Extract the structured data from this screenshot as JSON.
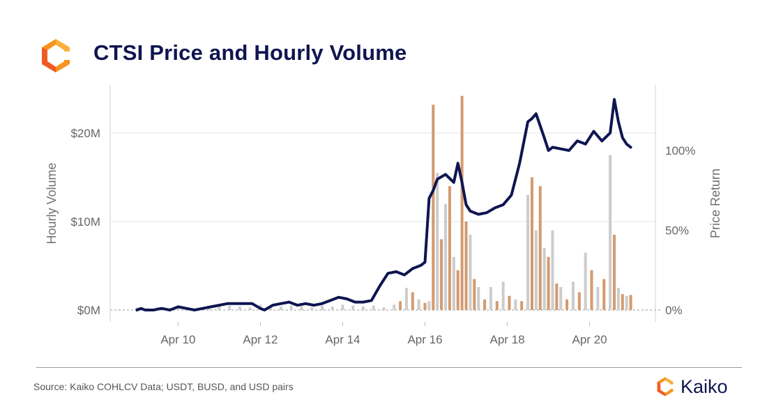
{
  "header": {
    "title": "CTSI Price and Hourly Volume"
  },
  "footer": {
    "source": "Source: Kaiko COHLCV Data; USDT, BUSD, and USD pairs",
    "brand": "Kaiko"
  },
  "colors": {
    "price_line": "#0f1550",
    "volume_bar_a": "#d49a6f",
    "volume_bar_b": "#cccccc",
    "grid": "#e6e6e6",
    "logo_orange": "#f7931e"
  },
  "chart_data": {
    "type": "bar+line",
    "title": "CTSI Price and Hourly Volume",
    "y_left_label": "Hourly Volume",
    "y_right_label": "Price Return",
    "y_left_ticks": [
      "$0M",
      "$10M",
      "$20M"
    ],
    "y_right_ticks": [
      "0%",
      "50%",
      "100%"
    ],
    "x_ticks": [
      "Apr 10",
      "Apr 12",
      "Apr 14",
      "Apr 16",
      "Apr 18",
      "Apr 20"
    ],
    "y_left_range_musd": [
      0,
      24
    ],
    "y_right_range_pct": [
      0,
      140
    ],
    "grid": true,
    "x_domain_days": [
      9.0,
      21.2
    ],
    "price_return_series": {
      "name": "Price Return",
      "x": [
        9.0,
        9.1,
        9.2,
        9.4,
        9.6,
        9.8,
        10.0,
        10.2,
        10.4,
        10.6,
        10.8,
        11.0,
        11.2,
        11.4,
        11.6,
        11.8,
        12.0,
        12.1,
        12.3,
        12.5,
        12.7,
        12.9,
        13.1,
        13.3,
        13.5,
        13.7,
        13.9,
        14.1,
        14.3,
        14.5,
        14.7,
        14.9,
        15.1,
        15.3,
        15.5,
        15.7,
        15.9,
        16.0,
        16.1,
        16.2,
        16.3,
        16.5,
        16.7,
        16.8,
        16.9,
        17.0,
        17.1,
        17.3,
        17.5,
        17.7,
        17.9,
        18.1,
        18.3,
        18.5,
        18.6,
        18.7,
        18.9,
        19.0,
        19.1,
        19.3,
        19.5,
        19.7,
        19.9,
        20.1,
        20.3,
        20.5,
        20.6,
        20.7,
        20.8,
        20.9,
        21.0
      ],
      "y": [
        0,
        1,
        0,
        0,
        1,
        0,
        2,
        1,
        0,
        1,
        2,
        3,
        4,
        4,
        4,
        4,
        1,
        0,
        3,
        4,
        5,
        3,
        4,
        3,
        4,
        6,
        8,
        7,
        5,
        5,
        6,
        15,
        23,
        24,
        22,
        26,
        28,
        30,
        70,
        75,
        82,
        85,
        80,
        92,
        80,
        66,
        62,
        60,
        61,
        64,
        66,
        72,
        92,
        118,
        120,
        123,
        108,
        100,
        102,
        101,
        100,
        106,
        104,
        112,
        106,
        111,
        132,
        118,
        108,
        104,
        102
      ]
    },
    "volume_series": {
      "name": "Hourly Volume",
      "unit": "USD millions",
      "x": [
        9.0,
        9.25,
        9.5,
        9.75,
        10.0,
        10.25,
        10.5,
        10.75,
        11.0,
        11.25,
        11.5,
        11.75,
        12.0,
        12.25,
        12.5,
        12.75,
        13.0,
        13.25,
        13.5,
        13.75,
        14.0,
        14.25,
        14.5,
        14.75,
        15.0,
        15.25,
        15.4,
        15.55,
        15.7,
        15.85,
        16.0,
        16.1,
        16.2,
        16.3,
        16.4,
        16.5,
        16.6,
        16.7,
        16.8,
        16.9,
        17.0,
        17.1,
        17.2,
        17.3,
        17.45,
        17.6,
        17.75,
        17.9,
        18.05,
        18.2,
        18.35,
        18.5,
        18.6,
        18.7,
        18.8,
        18.9,
        19.0,
        19.1,
        19.2,
        19.3,
        19.45,
        19.6,
        19.75,
        19.9,
        20.05,
        20.2,
        20.35,
        20.5,
        20.6,
        20.7,
        20.8,
        20.9,
        21.0
      ],
      "y": [
        0.3,
        0.2,
        0.3,
        0.2,
        0.4,
        0.3,
        0.2,
        0.3,
        0.4,
        0.5,
        0.4,
        0.3,
        0.6,
        0.3,
        0.4,
        0.5,
        0.4,
        0.3,
        0.5,
        0.4,
        0.6,
        0.5,
        0.4,
        0.5,
        0.3,
        0.6,
        1.0,
        2.5,
        2.0,
        1.2,
        0.8,
        1.0,
        23.2,
        15.5,
        8.0,
        12.0,
        14.0,
        6.0,
        4.5,
        24.2,
        10.0,
        8.5,
        3.5,
        2.6,
        1.2,
        2.6,
        1.0,
        3.2,
        1.6,
        1.2,
        1.0,
        13.0,
        15.0,
        9.0,
        14.0,
        7.0,
        6.0,
        9.0,
        3.0,
        2.6,
        1.2,
        3.2,
        2.0,
        6.5,
        4.5,
        2.6,
        3.5,
        17.5,
        8.5,
        2.5,
        1.8,
        1.6,
        1.7
      ]
    }
  }
}
